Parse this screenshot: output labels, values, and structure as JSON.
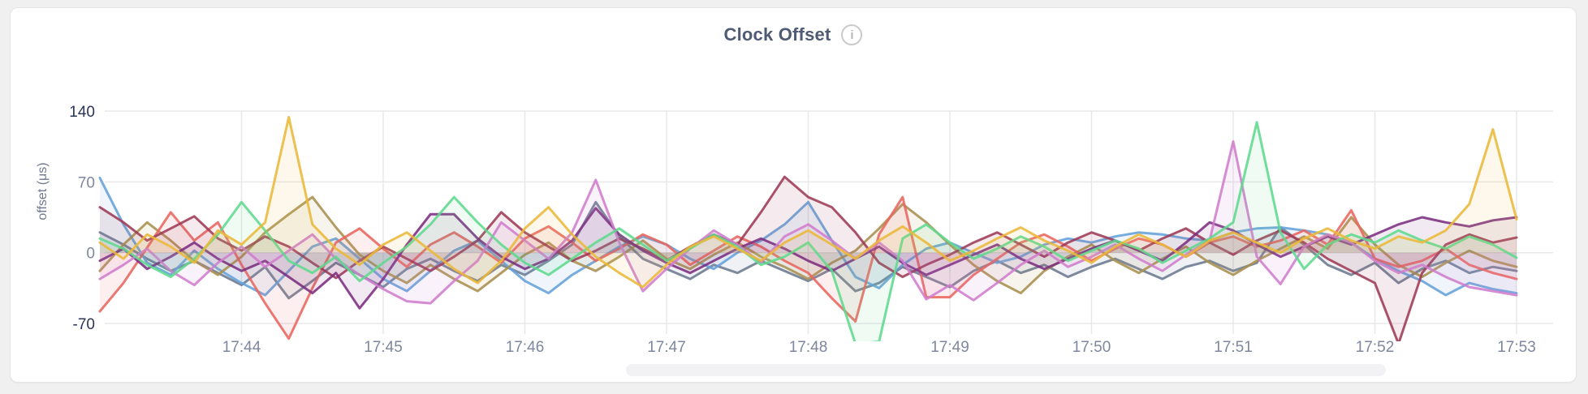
{
  "header": {
    "title": "Clock Offset",
    "info_icon_glyph": "i"
  },
  "colors": {
    "grid": "#e8e8ea",
    "tick_dark": "#2a3558",
    "tick_light": "#7e879f",
    "title": "#4e5b72",
    "axis_title": "#71798f",
    "card_bg": "#ffffff",
    "card_border": "#e5e6e8",
    "page_bg": "#f0f0f1"
  },
  "chart_data": {
    "type": "line",
    "title": "Clock Offset",
    "xlabel": "",
    "ylabel": "offset (μs)",
    "ylim": [
      -88,
      170
    ],
    "grid": true,
    "legend_position": "none",
    "sample_interval_seconds": 10,
    "x_tick_labels": [
      "17:44",
      "17:45",
      "17:46",
      "17:47",
      "17:48",
      "17:49",
      "17:50",
      "17:51",
      "17:52",
      "17:53"
    ],
    "y_ticks": [
      {
        "label": "140",
        "value": 140,
        "emphasis": true
      },
      {
        "label": "70",
        "value": 70,
        "emphasis": false
      },
      {
        "label": "0",
        "value": 0,
        "emphasis": false
      },
      {
        "label": "-70",
        "value": -70,
        "emphasis": true
      }
    ],
    "series": [
      {
        "name": "slate",
        "color": "#6b7a90",
        "values": [
          20,
          8,
          -6,
          -18,
          -8,
          -20,
          -32,
          -14,
          -45,
          -28,
          -10,
          -22,
          -34,
          -16,
          -6,
          -18,
          -28,
          -12,
          -22,
          -8,
          8,
          50,
          16,
          -6,
          -16,
          -26,
          -12,
          -20,
          -8,
          -18,
          -28,
          -16,
          -38,
          -30,
          -14,
          -24,
          -34,
          -18,
          -8,
          -20,
          -12,
          -24,
          -14,
          -6,
          -16,
          -26,
          -14,
          -8,
          -18,
          -10,
          25,
          8,
          -12,
          -22,
          -10,
          -30,
          -16,
          -8,
          -20,
          -14,
          -18
        ]
      },
      {
        "name": "blue",
        "color": "#64a0d9",
        "values": [
          74,
          28,
          -10,
          -22,
          2,
          -16,
          -30,
          -42,
          -18,
          6,
          14,
          -6,
          -26,
          -38,
          -18,
          2,
          12,
          -8,
          -28,
          -40,
          -22,
          -8,
          6,
          16,
          8,
          -6,
          -16,
          0,
          12,
          28,
          50,
          12,
          -24,
          -35,
          -12,
          4,
          10,
          0,
          -10,
          -4,
          8,
          14,
          10,
          16,
          20,
          18,
          14,
          12,
          20,
          24,
          25,
          22,
          18,
          10,
          -6,
          -18,
          -28,
          -42,
          -30,
          -36,
          -40
        ]
      },
      {
        "name": "khaki",
        "color": "#a8904e",
        "values": [
          -18,
          8,
          30,
          12,
          -8,
          -22,
          -4,
          20,
          38,
          55,
          25,
          -2,
          -18,
          -30,
          -12,
          -26,
          -38,
          -20,
          -2,
          10,
          -8,
          -18,
          -4,
          12,
          -6,
          -16,
          -2,
          10,
          -4,
          -14,
          -26,
          -10,
          2,
          24,
          48,
          30,
          8,
          -12,
          -28,
          -40,
          -18,
          -4,
          8,
          -8,
          -20,
          -6,
          6,
          -10,
          -22,
          -8,
          4,
          16,
          4,
          35,
          8,
          -12,
          -24,
          -10,
          2,
          -8,
          -14
        ]
      },
      {
        "name": "salmon",
        "color": "#e9655f",
        "values": [
          -58,
          -30,
          5,
          40,
          12,
          30,
          -12,
          -50,
          -85,
          -35,
          10,
          24,
          4,
          -14,
          8,
          20,
          6,
          -10,
          14,
          26,
          10,
          -8,
          4,
          18,
          8,
          -12,
          2,
          16,
          6,
          -8,
          -20,
          -45,
          -68,
          18,
          55,
          -44,
          -44,
          -22,
          -6,
          10,
          18,
          6,
          -8,
          4,
          14,
          8,
          -4,
          10,
          16,
          6,
          12,
          22,
          8,
          42,
          -6,
          -14,
          -8,
          4,
          -12,
          -20,
          -26
        ]
      },
      {
        "name": "maroon",
        "color": "#9e3a56",
        "values": [
          45,
          30,
          12,
          24,
          36,
          14,
          2,
          16,
          6,
          -10,
          -25,
          -8,
          6,
          -6,
          -18,
          -4,
          12,
          40,
          20,
          6,
          -8,
          2,
          14,
          4,
          -8,
          6,
          18,
          8,
          40,
          75,
          55,
          45,
          20,
          -10,
          -24,
          -12,
          -2,
          10,
          20,
          8,
          -4,
          10,
          20,
          12,
          2,
          14,
          24,
          10,
          -2,
          12,
          22,
          10,
          -6,
          -18,
          -30,
          -90,
          -20,
          8,
          18,
          10,
          15
        ]
      },
      {
        "name": "purple",
        "color": "#7b2d80",
        "values": [
          -8,
          4,
          -16,
          -4,
          10,
          -6,
          -18,
          -8,
          -24,
          -40,
          -20,
          -55,
          -26,
          8,
          38,
          38,
          14,
          -4,
          -16,
          -6,
          12,
          44,
          18,
          2,
          -10,
          -20,
          -8,
          4,
          14,
          4,
          -8,
          -18,
          -6,
          6,
          -10,
          -22,
          -12,
          -2,
          8,
          -6,
          -16,
          -6,
          4,
          12,
          2,
          -8,
          10,
          30,
          22,
          8,
          -4,
          6,
          16,
          8,
          18,
          28,
          35,
          30,
          26,
          32,
          35
        ]
      },
      {
        "name": "orchid",
        "color": "#d07ccd",
        "values": [
          -26,
          -12,
          4,
          -18,
          -32,
          -10,
          6,
          -14,
          2,
          18,
          -6,
          -22,
          -36,
          -48,
          -50,
          -28,
          -8,
          30,
          12,
          -6,
          20,
          72,
          10,
          -38,
          -16,
          4,
          22,
          8,
          -10,
          16,
          28,
          12,
          -6,
          10,
          -8,
          -46,
          -32,
          -47,
          -30,
          -12,
          2,
          -14,
          -4,
          8,
          -6,
          -18,
          -2,
          12,
          110,
          -4,
          -31,
          6,
          18,
          10,
          -8,
          -20,
          -12,
          -24,
          -34,
          -38,
          -42
        ]
      },
      {
        "name": "green",
        "color": "#5fd98d",
        "values": [
          14,
          4,
          -12,
          -24,
          -6,
          18,
          50,
          22,
          -8,
          -20,
          -4,
          -28,
          -10,
          6,
          28,
          55,
          30,
          8,
          -10,
          -22,
          -6,
          10,
          24,
          8,
          -8,
          4,
          18,
          6,
          -12,
          -4,
          10,
          -18,
          -90,
          -88,
          14,
          28,
          10,
          -6,
          4,
          16,
          6,
          -8,
          2,
          12,
          4,
          -10,
          2,
          14,
          30,
          129,
          20,
          -16,
          8,
          18,
          10,
          22,
          12,
          4,
          16,
          8,
          -5
        ]
      },
      {
        "name": "gold",
        "color": "#eab839",
        "values": [
          10,
          -6,
          18,
          6,
          -10,
          22,
          8,
          30,
          134,
          28,
          4,
          -12,
          8,
          20,
          2,
          -16,
          -30,
          -8,
          24,
          45,
          18,
          -4,
          -20,
          -34,
          -12,
          6,
          16,
          4,
          -8,
          10,
          22,
          8,
          -6,
          12,
          26,
          10,
          -8,
          2,
          14,
          25,
          12,
          2,
          -10,
          6,
          18,
          8,
          -4,
          12,
          20,
          10,
          0,
          14,
          24,
          12,
          4,
          16,
          10,
          22,
          48,
          122,
          33
        ]
      }
    ]
  }
}
